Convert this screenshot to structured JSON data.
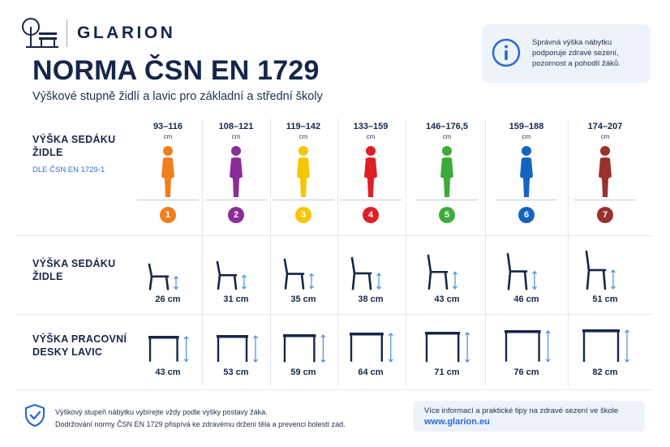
{
  "brand": {
    "name": "GLARION",
    "logo_icon": "school-bench-tree-logo"
  },
  "header": {
    "title": "NORMA ČSN EN 1729",
    "subtitle": "Výškové stupně židlí a lavic pro základní a střední školy"
  },
  "info": {
    "icon": "info-icon",
    "text_lines": [
      "Správná výška nábytku",
      "podporuje zdravé sezení,",
      "pozornost a pohodlí žáků."
    ]
  },
  "rows": {
    "body_height": {
      "label_lines": [
        "VÝŠKA SEDÁKU",
        "ŽIDLE"
      ],
      "sub": "DLE ČSN EN 1729-1"
    },
    "seat_height": {
      "label_lines": [
        "VÝŠKA SEDÁKU",
        "ŽIDLE"
      ]
    },
    "desk_height": {
      "label_lines": [
        "VÝŠKA PRACOVNÍ",
        "DESKY LAVIC"
      ]
    }
  },
  "unit_small": "cm",
  "sizes": [
    {
      "number": "1",
      "color": "#f07f1d",
      "range": "93–116",
      "seat": "26 cm",
      "desk": "43 cm",
      "scale": 0.4
    },
    {
      "number": "2",
      "color": "#8b2d97",
      "range": "108–121",
      "seat": "31 cm",
      "desk": "53 cm",
      "scale": 0.5
    },
    {
      "number": "3",
      "color": "#f4c700",
      "range": "119–142",
      "seat": "35 cm",
      "desk": "59 cm",
      "scale": 0.6
    },
    {
      "number": "4",
      "color": "#dd1f26",
      "range": "133–159",
      "seat": "38 cm",
      "desk": "64 cm",
      "scale": 0.7
    },
    {
      "number": "5",
      "color": "#3dab3b",
      "range": "146–176,5",
      "seat": "43 cm",
      "desk": "71 cm",
      "scale": 0.8
    },
    {
      "number": "6",
      "color": "#1565c0",
      "range": "159–188",
      "seat": "46 cm",
      "desk": "76 cm",
      "scale": 0.9
    },
    {
      "number": "7",
      "color": "#99312c",
      "range": "174–207",
      "seat": "51 cm",
      "desk": "82 cm",
      "scale": 1.0
    }
  ],
  "footer": {
    "shield_icon": "shield-check-icon",
    "text_lines": [
      "Výškový stupeň nábytku vybírejte vždy podle výšky postavy žáka.",
      "Dodržování normy ČSN EN 1729 přispívá ke zdravému držení těla a prevenci bolestí zad."
    ],
    "more_info": "Více informací a praktické tipy na zdravé sezení ve škole",
    "link": "www.glarion.eu"
  }
}
